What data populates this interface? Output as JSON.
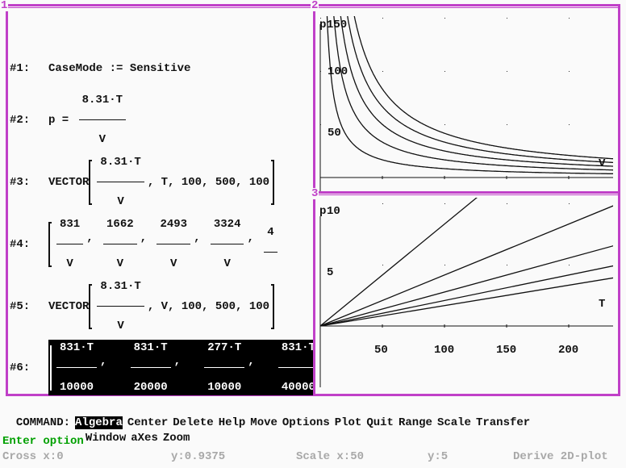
{
  "windows": [
    {
      "number": "1"
    },
    {
      "number": "2"
    },
    {
      "number": "3"
    }
  ],
  "algebra": {
    "e1": {
      "label": "#1:",
      "text": "CaseMode := Sensitive"
    },
    "e2": {
      "label": "#2:",
      "prefix": "p = ",
      "num": "8.31·T",
      "den": "V"
    },
    "e3": {
      "label": "#3:",
      "prefix": "VECTOR",
      "num": "8.31·T",
      "den": "V",
      "suffix": ", T, 100, 500, 100"
    },
    "e4": {
      "label": "#4:",
      "fractions": [
        {
          "num": "831",
          "den": "V"
        },
        {
          "num": "1662",
          "den": "V"
        },
        {
          "num": "2493",
          "den": "V"
        },
        {
          "num": "3324",
          "den": "V"
        },
        {
          "num": "4",
          "den": ""
        }
      ]
    },
    "e5": {
      "label": "#5:",
      "prefix": "VECTOR",
      "num": "8.31·T",
      "den": "V",
      "suffix": ", V, 100, 500, 100"
    },
    "e6": {
      "label": "#6:",
      "fractions": [
        {
          "num": "831·T",
          "den": "10000"
        },
        {
          "num": "831·T",
          "den": "20000"
        },
        {
          "num": "277·T",
          "den": "10000"
        },
        {
          "num": "831·T",
          "den": "40000"
        }
      ]
    }
  },
  "menu": {
    "command_label": "COMMAND:",
    "items": [
      "Algebra",
      "Center",
      "Delete",
      "Help",
      "Move",
      "Options",
      "Plot",
      "Quit",
      "Range",
      "Scale",
      "Transfer",
      "Window",
      "aXes",
      "Zoom"
    ],
    "selected": "Algebra"
  },
  "prompt": "Enter option",
  "status": {
    "cross_x": "Cross x:0",
    "cross_y": "y:0.9375",
    "scale_x": "Scale x:50",
    "scale_y": "y:5",
    "mode": "Derive 2D-plot"
  },
  "colors": {
    "border": "#c040c8",
    "prompt": "#00a000",
    "status": "#a8a8a8",
    "background": "#fafafa"
  },
  "chart_data": [
    {
      "type": "line",
      "window": "2",
      "xlabel": "V",
      "ylabel": "p",
      "y_ticks": [
        "150",
        "100",
        "50"
      ],
      "x_ticks": [],
      "xlim": [
        0,
        236
      ],
      "ylim": [
        0,
        150
      ],
      "grid": "dots",
      "function": "p = 8.31·T/V",
      "parameter": "T",
      "parameter_values": [
        100,
        200,
        300,
        400,
        500
      ]
    },
    {
      "type": "line",
      "window": "3",
      "xlabel": "T",
      "ylabel": "p",
      "y_ticks": [
        "10",
        "5"
      ],
      "x_ticks": [
        "50",
        "100",
        "150",
        "200"
      ],
      "xlim": [
        0,
        236
      ],
      "ylim": [
        0,
        10
      ],
      "grid": "dots",
      "function": "p = 8.31·T/V",
      "parameter": "V",
      "parameter_values": [
        100,
        200,
        300,
        400,
        500
      ]
    }
  ]
}
